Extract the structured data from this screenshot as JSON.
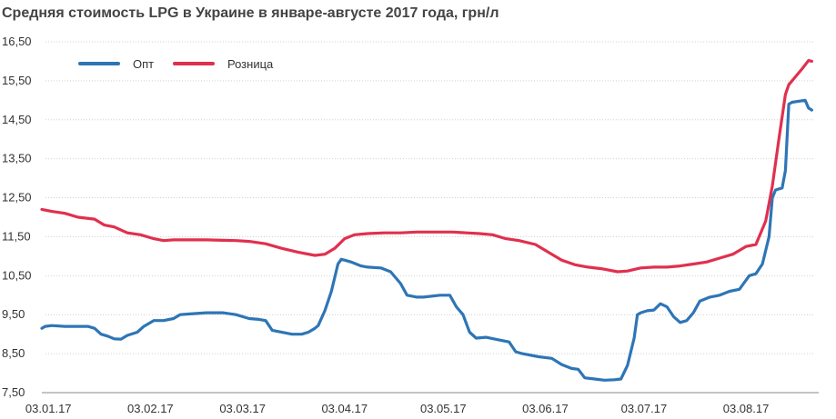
{
  "chart_data": {
    "type": "line",
    "title": "Средняя стоимость LPG в Украине в январе-августе 2017 года, грн/л",
    "xlabel": "",
    "ylabel": "",
    "ylim": [
      7.5,
      16.5
    ],
    "yticks": [
      7.5,
      8.5,
      9.5,
      10.5,
      11.5,
      12.5,
      13.5,
      14.5,
      15.5,
      16.5
    ],
    "ytick_labels": [
      "7,50",
      "8,50",
      "9,50",
      "10,50",
      "11,50",
      "12,50",
      "13,50",
      "14,50",
      "15,50",
      "16,50"
    ],
    "xticks": [
      "03.01.17",
      "03.02.17",
      "03.03.17",
      "03.04.17",
      "03.05.17",
      "03.06.17",
      "03.07.17",
      "03.08.17"
    ],
    "grid": true,
    "legend_position": "top-left",
    "series": [
      {
        "name": "Опт",
        "color": "#2e75b6",
        "x": [
          "2017-01-01",
          "2017-01-02",
          "2017-01-04",
          "2017-01-08",
          "2017-01-12",
          "2017-01-15",
          "2017-01-17",
          "2017-01-19",
          "2017-01-21",
          "2017-01-23",
          "2017-01-25",
          "2017-01-27",
          "2017-01-30",
          "2017-02-01",
          "2017-02-04",
          "2017-02-07",
          "2017-02-10",
          "2017-02-12",
          "2017-02-15",
          "2017-02-20",
          "2017-02-25",
          "2017-03-01",
          "2017-03-05",
          "2017-03-08",
          "2017-03-10",
          "2017-03-12",
          "2017-03-18",
          "2017-03-21",
          "2017-03-23",
          "2017-03-25",
          "2017-03-26",
          "2017-03-28",
          "2017-03-30",
          "2017-04-01",
          "2017-04-02",
          "2017-04-03",
          "2017-04-05",
          "2017-04-08",
          "2017-04-10",
          "2017-04-14",
          "2017-04-17",
          "2017-04-20",
          "2017-04-22",
          "2017-04-25",
          "2017-04-27",
          "2017-05-02",
          "2017-05-05",
          "2017-05-07",
          "2017-05-09",
          "2017-05-11",
          "2017-05-13",
          "2017-05-16",
          "2017-05-20",
          "2017-05-23",
          "2017-05-25",
          "2017-05-27",
          "2017-06-01",
          "2017-06-05",
          "2017-06-08",
          "2017-06-11",
          "2017-06-13",
          "2017-06-15",
          "2017-06-18",
          "2017-06-21",
          "2017-06-24",
          "2017-06-26",
          "2017-06-28",
          "2017-06-30",
          "2017-07-01",
          "2017-07-02",
          "2017-07-04",
          "2017-07-06",
          "2017-07-08",
          "2017-07-10",
          "2017-07-12",
          "2017-07-14",
          "2017-07-16",
          "2017-07-18",
          "2017-07-20",
          "2017-07-23",
          "2017-07-26",
          "2017-07-29",
          "2017-08-01",
          "2017-08-04",
          "2017-08-06",
          "2017-08-08",
          "2017-08-10",
          "2017-08-11",
          "2017-08-12",
          "2017-08-14",
          "2017-08-15",
          "2017-08-16",
          "2017-08-17",
          "2017-08-21",
          "2017-08-22",
          "2017-08-23"
        ],
        "values": [
          9.15,
          9.2,
          9.22,
          9.2,
          9.2,
          9.2,
          9.15,
          9.0,
          8.95,
          8.88,
          8.87,
          8.97,
          9.05,
          9.2,
          9.35,
          9.35,
          9.4,
          9.5,
          9.52,
          9.55,
          9.55,
          9.5,
          9.4,
          9.38,
          9.35,
          9.1,
          9.0,
          9.0,
          9.05,
          9.15,
          9.22,
          9.6,
          10.1,
          10.8,
          10.92,
          10.9,
          10.85,
          10.75,
          10.72,
          10.7,
          10.6,
          10.3,
          10.0,
          9.95,
          9.95,
          10.0,
          10.0,
          9.7,
          9.5,
          9.05,
          8.9,
          8.92,
          8.85,
          8.8,
          8.55,
          8.5,
          8.42,
          8.38,
          8.22,
          8.12,
          8.1,
          7.88,
          7.85,
          7.82,
          7.83,
          7.85,
          8.2,
          8.9,
          9.5,
          9.55,
          9.6,
          9.62,
          9.78,
          9.7,
          9.45,
          9.3,
          9.35,
          9.55,
          9.85,
          9.95,
          10.0,
          10.1,
          10.15,
          10.5,
          10.55,
          10.8,
          11.5,
          12.5,
          12.7,
          12.75,
          13.2,
          14.9,
          14.95,
          15.0,
          14.8,
          14.75
        ]
      },
      {
        "name": "Розница",
        "color": "#e0304e",
        "x": [
          "2017-01-01",
          "2017-01-04",
          "2017-01-08",
          "2017-01-12",
          "2017-01-17",
          "2017-01-20",
          "2017-01-23",
          "2017-01-27",
          "2017-01-31",
          "2017-02-04",
          "2017-02-07",
          "2017-02-10",
          "2017-02-20",
          "2017-03-01",
          "2017-03-05",
          "2017-03-10",
          "2017-03-15",
          "2017-03-20",
          "2017-03-25",
          "2017-03-28",
          "2017-03-31",
          "2017-04-03",
          "2017-04-06",
          "2017-04-10",
          "2017-04-15",
          "2017-04-20",
          "2017-04-25",
          "2017-05-01",
          "2017-05-06",
          "2017-05-10",
          "2017-05-14",
          "2017-05-18",
          "2017-05-22",
          "2017-05-26",
          "2017-05-31",
          "2017-06-04",
          "2017-06-08",
          "2017-06-12",
          "2017-06-16",
          "2017-06-20",
          "2017-06-25",
          "2017-06-28",
          "2017-07-02",
          "2017-07-06",
          "2017-07-10",
          "2017-07-14",
          "2017-07-18",
          "2017-07-22",
          "2017-07-26",
          "2017-07-30",
          "2017-08-03",
          "2017-08-06",
          "2017-08-09",
          "2017-08-11",
          "2017-08-13",
          "2017-08-15",
          "2017-08-16",
          "2017-08-18",
          "2017-08-20",
          "2017-08-22",
          "2017-08-23"
        ],
        "values": [
          12.2,
          12.15,
          12.1,
          12.0,
          11.95,
          11.8,
          11.75,
          11.6,
          11.55,
          11.45,
          11.4,
          11.42,
          11.42,
          11.4,
          11.38,
          11.32,
          11.2,
          11.1,
          11.02,
          11.05,
          11.2,
          11.45,
          11.55,
          11.58,
          11.6,
          11.6,
          11.62,
          11.62,
          11.62,
          11.6,
          11.58,
          11.55,
          11.45,
          11.4,
          11.3,
          11.1,
          10.9,
          10.78,
          10.72,
          10.68,
          10.6,
          10.62,
          10.7,
          10.72,
          10.72,
          10.75,
          10.8,
          10.85,
          10.95,
          11.05,
          11.25,
          11.3,
          11.9,
          12.8,
          14.0,
          15.15,
          15.4,
          15.6,
          15.8,
          16.02,
          16.0
        ]
      }
    ]
  }
}
